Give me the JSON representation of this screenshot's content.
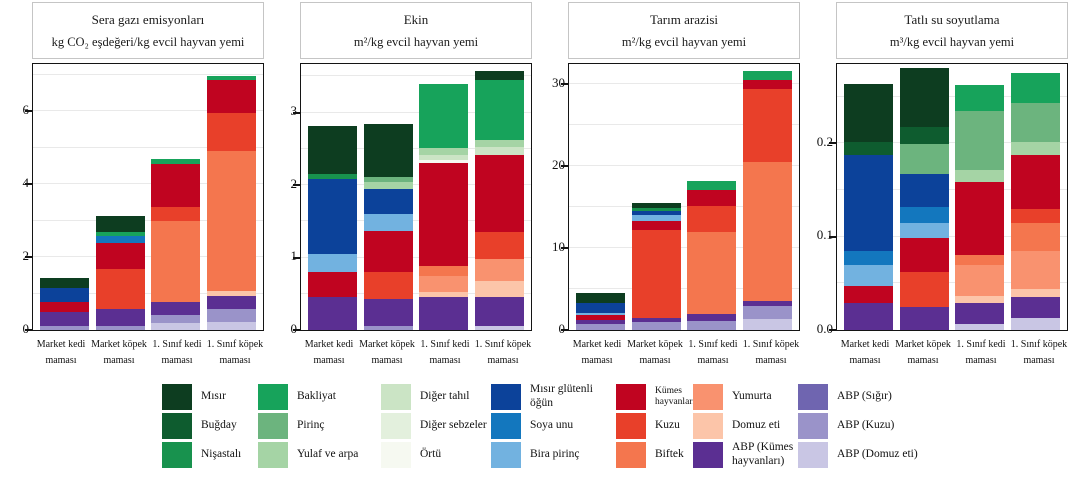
{
  "figure": {
    "background": "#ffffff",
    "plot_border_color": "#141414",
    "grid_color": "#e9e9e9"
  },
  "categories": [
    "Market kedi maması",
    "Market köpek maması",
    "1. Sınıf kedi maması",
    "1. Sınıf köpek maması"
  ],
  "ingredients": {
    "order": [
      "abp_domuz",
      "abp_kuzu",
      "abp_sigir",
      "abp_kumes",
      "domuz",
      "yumurta",
      "biftek",
      "kuzu",
      "kumes",
      "bira_pirinc",
      "soya",
      "misir_glutenli",
      "ortu",
      "diger_sebzeler",
      "diger_tahil",
      "yulaf",
      "pirinc",
      "bakliyat",
      "nisastali",
      "bugday",
      "misir"
    ],
    "defs": {
      "misir": {
        "label": "Mısır",
        "color": "#0d3d20"
      },
      "bugday": {
        "label": "Buğday",
        "color": "#0e5c2f"
      },
      "nisastali": {
        "label": "Nişastalı",
        "color": "#18924e"
      },
      "bakliyat": {
        "label": "Bakliyat",
        "color": "#17a35b"
      },
      "pirinc": {
        "label": "Pirinç",
        "color": "#6cb47e"
      },
      "yulaf": {
        "label": "Yulaf ve arpa",
        "color": "#a5d4a5"
      },
      "diger_tahil": {
        "label": "Diğer tahıl",
        "color": "#cbe4c5"
      },
      "diger_sebzeler": {
        "label": "Diğer sebzeler",
        "color": "#e3f0dd"
      },
      "ortu": {
        "label": "Örtü",
        "color": "#f6f9f1"
      },
      "misir_glutenli": {
        "label": "Mısır glütenli öğün",
        "color": "#0c429a"
      },
      "soya": {
        "label": "Soya unu",
        "color": "#1377be"
      },
      "bira_pirinc": {
        "label": "Bira pirinç",
        "color": "#72b2e0"
      },
      "kumes": {
        "label": "Kümes hayvanları",
        "color": "#c00420"
      },
      "kuzu": {
        "label": "Kuzu",
        "color": "#e8402a"
      },
      "biftek": {
        "label": "Biftek",
        "color": "#f4764e"
      },
      "yumurta": {
        "label": "Yumurta",
        "color": "#f9926f"
      },
      "domuz": {
        "label": "Domuz eti",
        "color": "#fcc5a9"
      },
      "abp_kumes": {
        "label": "ABP (Kümes hayvanları)",
        "color": "#5b2f92"
      },
      "abp_sigir": {
        "label": "ABP (Sığır)",
        "color": "#6f65b0"
      },
      "abp_kuzu": {
        "label": "ABP (Kuzu)",
        "color": "#9a93c9"
      },
      "abp_domuz": {
        "label": "ABP (Domuz eti)",
        "color": "#c9c6e4"
      }
    }
  },
  "legend": {
    "columns": [
      [
        "misir",
        "bugday",
        "nisastali"
      ],
      [
        "bakliyat",
        "pirinc",
        "yulaf"
      ],
      [
        "diger_tahil",
        "diger_sebzeler",
        "ortu"
      ],
      [
        "misir_glutenli",
        "soya",
        "bira_pirinc"
      ],
      [
        "kumes",
        "kuzu",
        "biftek"
      ],
      [
        "yumurta",
        "domuz",
        "abp_kumes"
      ],
      [
        "abp_sigir",
        "abp_kuzu",
        "abp_domuz"
      ]
    ]
  },
  "chart_data": [
    {
      "type": "bar",
      "title": "Sera gazı emisyonları",
      "subtitle": "kg CO₂ eşdeğeri/kg evcil hayvan yemi",
      "ylim": [
        0,
        7.3
      ],
      "grid_step": 1,
      "yticks": [
        {
          "v": 0,
          "label": "0"
        },
        {
          "v": 2,
          "label": "2"
        },
        {
          "v": 4,
          "label": "4"
        },
        {
          "v": 6,
          "label": "6"
        }
      ],
      "stacks": [
        {
          "abp_kuzu": 0.1,
          "abp_kumes": 0.4,
          "kumes": 0.28,
          "misir_glutenli": 0.38,
          "misir": 0.27
        },
        {
          "abp_kuzu": 0.1,
          "abp_kumes": 0.48,
          "kuzu": 1.1,
          "kumes": 0.7,
          "soya": 0.2,
          "bakliyat": 0.12,
          "misir": 0.42
        },
        {
          "abp_domuz": 0.18,
          "abp_kuzu": 0.24,
          "abp_kumes": 0.36,
          "biftek": 2.2,
          "kuzu": 0.4,
          "kumes": 1.18,
          "bakliyat": 0.14
        },
        {
          "abp_domuz": 0.22,
          "abp_kuzu": 0.36,
          "abp_kumes": 0.36,
          "domuz": 0.12,
          "biftek": 3.84,
          "kuzu": 1.06,
          "kumes": 0.9,
          "bakliyat": 0.12
        }
      ]
    },
    {
      "type": "bar",
      "title": "Ekin",
      "subtitle": "m²/kg evcil hayvan yemi",
      "ylim": [
        0,
        3.67
      ],
      "grid_step": 0.5,
      "yticks": [
        {
          "v": 0,
          "label": "0"
        },
        {
          "v": 1,
          "label": "1"
        },
        {
          "v": 2,
          "label": "2"
        },
        {
          "v": 3,
          "label": "3"
        }
      ],
      "stacks": [
        {
          "abp_kumes": 0.45,
          "kumes": 0.35,
          "bira_pirinc": 0.25,
          "misir_glutenli": 1.03,
          "nisastali": 0.07,
          "misir": 0.66
        },
        {
          "abp_kuzu": 0.05,
          "abp_kumes": 0.38,
          "kuzu": 0.37,
          "kumes": 0.57,
          "bira_pirinc": 0.23,
          "misir_glutenli": 0.35,
          "yulaf": 0.09,
          "pirinc": 0.07,
          "misir": 0.74
        },
        {
          "abp_kumes": 0.46,
          "domuz": 0.07,
          "yumurta": 0.22,
          "biftek": 0.14,
          "kumes": 1.41,
          "ortu": 0.05,
          "diger_tahil": 0.06,
          "yulaf": 0.1,
          "bakliyat": 0.89
        },
        {
          "abp_domuz": 0.06,
          "abp_kumes": 0.4,
          "domuz": 0.21,
          "yumurta": 0.31,
          "kuzu": 0.37,
          "kumes": 1.07,
          "diger_tahil": 0.1,
          "yulaf": 0.1,
          "bakliyat": 0.83,
          "misir": 0.13
        }
      ]
    },
    {
      "type": "bar",
      "title": "Tarım arazisi",
      "subtitle": "m²/kg evcil hayvan yemi",
      "ylim": [
        0,
        32.5
      ],
      "grid_step": 5,
      "yticks": [
        {
          "v": 0,
          "label": "0"
        },
        {
          "v": 10,
          "label": "10"
        },
        {
          "v": 20,
          "label": "20"
        },
        {
          "v": 30,
          "label": "30"
        }
      ],
      "stacks": [
        {
          "abp_kuzu": 0.7,
          "abp_kumes": 0.5,
          "kumes": 0.6,
          "bira_pirinc": 0.3,
          "misir_glutenli": 1.2,
          "misir": 1.2
        },
        {
          "abp_kuzu": 1.0,
          "abp_kumes": 0.5,
          "kuzu": 10.7,
          "kumes": 1.1,
          "bira_pirinc": 0.7,
          "misir_glutenli": 0.6,
          "nisastali": 0.3,
          "misir": 0.6
        },
        {
          "abp_kuzu": 1.1,
          "abp_kumes": 0.8,
          "biftek": 10.1,
          "kuzu": 3.2,
          "kumes": 1.9,
          "bakliyat": 1.1
        },
        {
          "abp_domuz": 1.3,
          "abp_kuzu": 1.6,
          "abp_kumes": 0.6,
          "biftek": 17.0,
          "kuzu": 8.9,
          "kumes": 1.1,
          "bakliyat": 1.2
        }
      ]
    },
    {
      "type": "bar",
      "title": "Tatlı su soyutlama",
      "subtitle": "m³/kg evcil hayvan yemi",
      "ylim": [
        0,
        0.285
      ],
      "grid_step": 0.05,
      "yticks": [
        {
          "v": 0,
          "label": "0.0"
        },
        {
          "v": 0.1,
          "label": "0.1"
        },
        {
          "v": 0.2,
          "label": "0.2"
        }
      ],
      "stacks": [
        {
          "abp_kumes": 0.029,
          "kumes": 0.018,
          "bira_pirinc": 0.023,
          "soya": 0.015,
          "misir_glutenli": 0.103,
          "bugday": 0.014,
          "misir": 0.062
        },
        {
          "abp_kumes": 0.025,
          "kuzu": 0.037,
          "kumes": 0.037,
          "bira_pirinc": 0.016,
          "soya": 0.017,
          "misir_glutenli": 0.035,
          "pirinc": 0.032,
          "bugday": 0.019,
          "misir": 0.063
        },
        {
          "abp_domuz": 0.006,
          "abp_kumes": 0.023,
          "domuz": 0.008,
          "yumurta": 0.033,
          "biftek": 0.01,
          "kumes": 0.079,
          "yulaf": 0.013,
          "pirinc": 0.063,
          "bakliyat": 0.028
        },
        {
          "abp_domuz": 0.013,
          "abp_kumes": 0.022,
          "domuz": 0.009,
          "yumurta": 0.041,
          "biftek": 0.03,
          "kuzu": 0.015,
          "kumes": 0.058,
          "yulaf": 0.014,
          "pirinc": 0.041,
          "bakliyat": 0.032
        }
      ]
    }
  ]
}
